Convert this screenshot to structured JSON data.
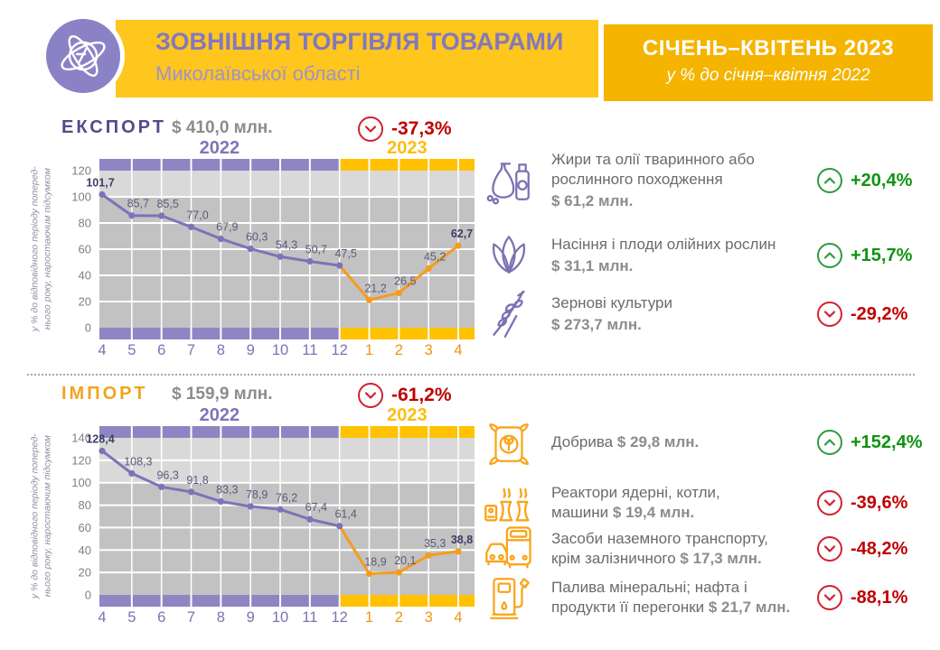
{
  "header": {
    "title": "ЗОВНІШНЯ ТОРГІВЛЯ ТОВАРАМИ",
    "subtitle": "Миколаївської області",
    "period_title": "СІЧЕНЬ–КВІТЕНЬ 2023",
    "period_subtitle": "у % до січня–квітня 2022"
  },
  "colors": {
    "header_bar": "#FFC61E",
    "period_box": "#F4B400",
    "logo_purple": "#8B82C6",
    "line_2022": "#7C73B9",
    "line_2023": "#F59C1C",
    "band_2022": "#8E86C3",
    "band_2023": "#FFC100",
    "plot_dark": "#C2C2C2",
    "plot_light": "#D9D9D9",
    "up_green": "#109310",
    "down_red": "#C00000"
  },
  "sections": {
    "export": {
      "label": "ЕКСПОРТ",
      "total": "$ 410,0 млн.",
      "change": "-37,3%",
      "trend": "down",
      "items": [
        {
          "icon": "oil-products-icon",
          "name": "Жири та олії тваринного або\nрослинного походження",
          "value": "$ 61,2 млн.",
          "change": "+20,4%",
          "trend": "up"
        },
        {
          "icon": "oilseeds-icon",
          "name": "Насіння і плоди олійних рослин",
          "value": "$ 31,1 млн.",
          "change": "+15,7%",
          "trend": "up"
        },
        {
          "icon": "cereals-icon",
          "name": "Зернові культури",
          "value": "$ 273,7 млн.",
          "change": "-29,2%",
          "trend": "down"
        }
      ]
    },
    "import": {
      "label": "ІМПОРТ",
      "total": "$ 159,9 млн.",
      "change": "-61,2%",
      "trend": "down",
      "items": [
        {
          "icon": "fertilizer-icon",
          "name": "Добрива",
          "value": "$ 29,8 млн.",
          "change": "+152,4%",
          "trend": "up"
        },
        {
          "icon": "reactor-icon",
          "name": "Реактори ядерні, котли,\nмашини",
          "value": "$ 19,4 млн.",
          "change": "-39,6%",
          "trend": "down"
        },
        {
          "icon": "vehicles-icon",
          "name": "Засоби наземного транспорту,\nкрім залізничного",
          "value": "$ 17,3 млн.",
          "change": "-48,2%",
          "trend": "down"
        },
        {
          "icon": "fuel-pump-icon",
          "name": "Палива мінеральні; нафта і\nпродукти її перегонки",
          "value": "$ 21,7 млн.",
          "change": "-88,1%",
          "trend": "down"
        }
      ]
    }
  },
  "chart_data": [
    {
      "id": "export",
      "type": "line",
      "title": "ЕКСПОРТ",
      "ylabel": "у % до відповідного періоду попереднього року, наростаючим підсумком",
      "ylabel_lines": [
        "у % до відповідного періоду поперед-",
        "нього року, наростаючим підсумком"
      ],
      "categories": [
        "4",
        "5",
        "6",
        "7",
        "8",
        "9",
        "10",
        "11",
        "12",
        "1",
        "2",
        "3",
        "4"
      ],
      "values": [
        101.7,
        85.7,
        85.5,
        77.0,
        67.9,
        60.3,
        54.3,
        50.7,
        47.5,
        21.2,
        26.5,
        45.2,
        62.7
      ],
      "value_labels": [
        "101,7",
        "85,7",
        "85,5",
        "77,0",
        "67,9",
        "60,3",
        "54,3",
        "50,7",
        "47,5",
        "21,2",
        "26,5",
        "45,2",
        "62,7"
      ],
      "split_index": 8,
      "period_labels": [
        "2022",
        "2023"
      ],
      "ylim": [
        0,
        120
      ],
      "yticks": [
        0,
        20,
        40,
        60,
        80,
        100,
        120
      ],
      "reference_level": 100,
      "grid": true,
      "legend": "none"
    },
    {
      "id": "import",
      "type": "line",
      "title": "ІМПОРТ",
      "ylabel": "у % до відповідного періоду попереднього року, наростаючим підсумком",
      "ylabel_lines": [
        "у % до відповідного періоду поперед-",
        "нього року, наростаючим підсумком"
      ],
      "categories": [
        "4",
        "5",
        "6",
        "7",
        "8",
        "9",
        "10",
        "11",
        "12",
        "1",
        "2",
        "3",
        "4"
      ],
      "values": [
        128.4,
        108.3,
        96.3,
        91.8,
        83.3,
        78.9,
        76.2,
        67.4,
        61.4,
        18.9,
        20.1,
        35.3,
        38.8
      ],
      "value_labels": [
        "128,4",
        "108,3",
        "96,3",
        "91,8",
        "83,3",
        "78,9",
        "76,2",
        "67,4",
        "61,4",
        "18,9",
        "20,1",
        "35,3",
        "38,8"
      ],
      "split_index": 8,
      "period_labels": [
        "2022",
        "2023"
      ],
      "ylim": [
        0,
        140
      ],
      "yticks": [
        0,
        20,
        40,
        60,
        80,
        100,
        120,
        140
      ],
      "reference_level": 100,
      "grid": true,
      "legend": "none"
    }
  ]
}
